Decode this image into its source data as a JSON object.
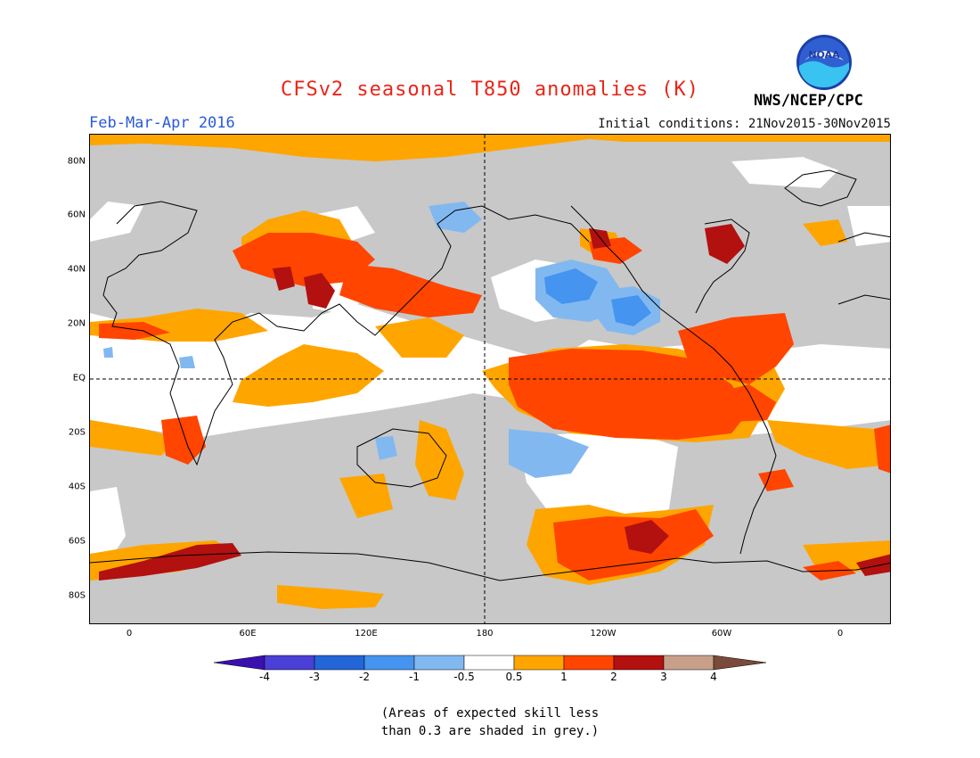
{
  "header": {
    "title": "CFSv2 seasonal T850 anomalies (K)",
    "period": "Feb-Mar-Apr 2016",
    "initial_conditions": "Initial conditions: 21Nov2015-30Nov2015",
    "org": "NWS/NCEP/CPC",
    "logo_text": "NOAA"
  },
  "map": {
    "lat_labels": [
      "80N",
      "60N",
      "40N",
      "20N",
      "EQ",
      "20S",
      "40S",
      "60S",
      "80S"
    ],
    "lon_labels": [
      "0",
      "60E",
      "120E",
      "180",
      "120W",
      "60W",
      "0"
    ]
  },
  "colorbar": {
    "labels": [
      "-4",
      "-3",
      "-2",
      "-1",
      "-0.5",
      "0.5",
      "1",
      "2",
      "3",
      "4"
    ],
    "colors": [
      "#3a10b0",
      "#4a3fd6",
      "#2266d8",
      "#4494f0",
      "#82b8f0",
      "#ffffff",
      "#ffa500",
      "#ff4500",
      "#b31010",
      "#c8a08a",
      "#7a4a3a"
    ]
  },
  "note": {
    "line1": "(Areas of expected skill less",
    "line2": "than 0.3 are shaded in grey.)"
  },
  "colors": {
    "grey": "#c8c8c8",
    "white": "#ffffff",
    "orange": "#ffa500",
    "red_orange": "#ff4500",
    "dark_red": "#b31010",
    "light_blue": "#82b8f0",
    "mid_blue": "#4494f0"
  }
}
